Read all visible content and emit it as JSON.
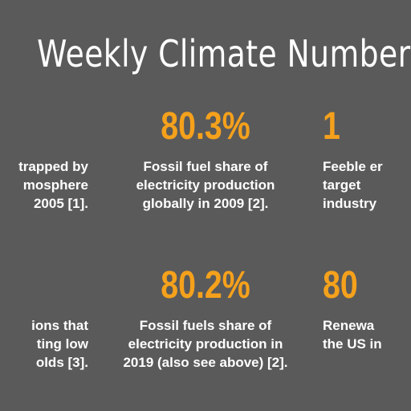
{
  "title": "Weekly Climate Numbers",
  "colors": {
    "background": "#5a5a5a",
    "accent": "#f5a11c",
    "text": "#ffffff"
  },
  "stats": [
    {
      "value": "",
      "description": "trapped by\nmosphere\n2005 [1]."
    },
    {
      "value": "80.3%",
      "description": "Fossil fuel share of\nelectricity production\nglobally in 2009 [2]."
    },
    {
      "value": "1",
      "description": "Feeble er\ntarget\nindustry"
    },
    {
      "value": "",
      "description": "ions that\nting low\nolds [3]."
    },
    {
      "value": "80.2%",
      "description": "Fossil fuels share of\nelectricity production in\n2019 (also see above) [2]."
    },
    {
      "value": "80",
      "description": "Renewa\nthe US in"
    }
  ]
}
